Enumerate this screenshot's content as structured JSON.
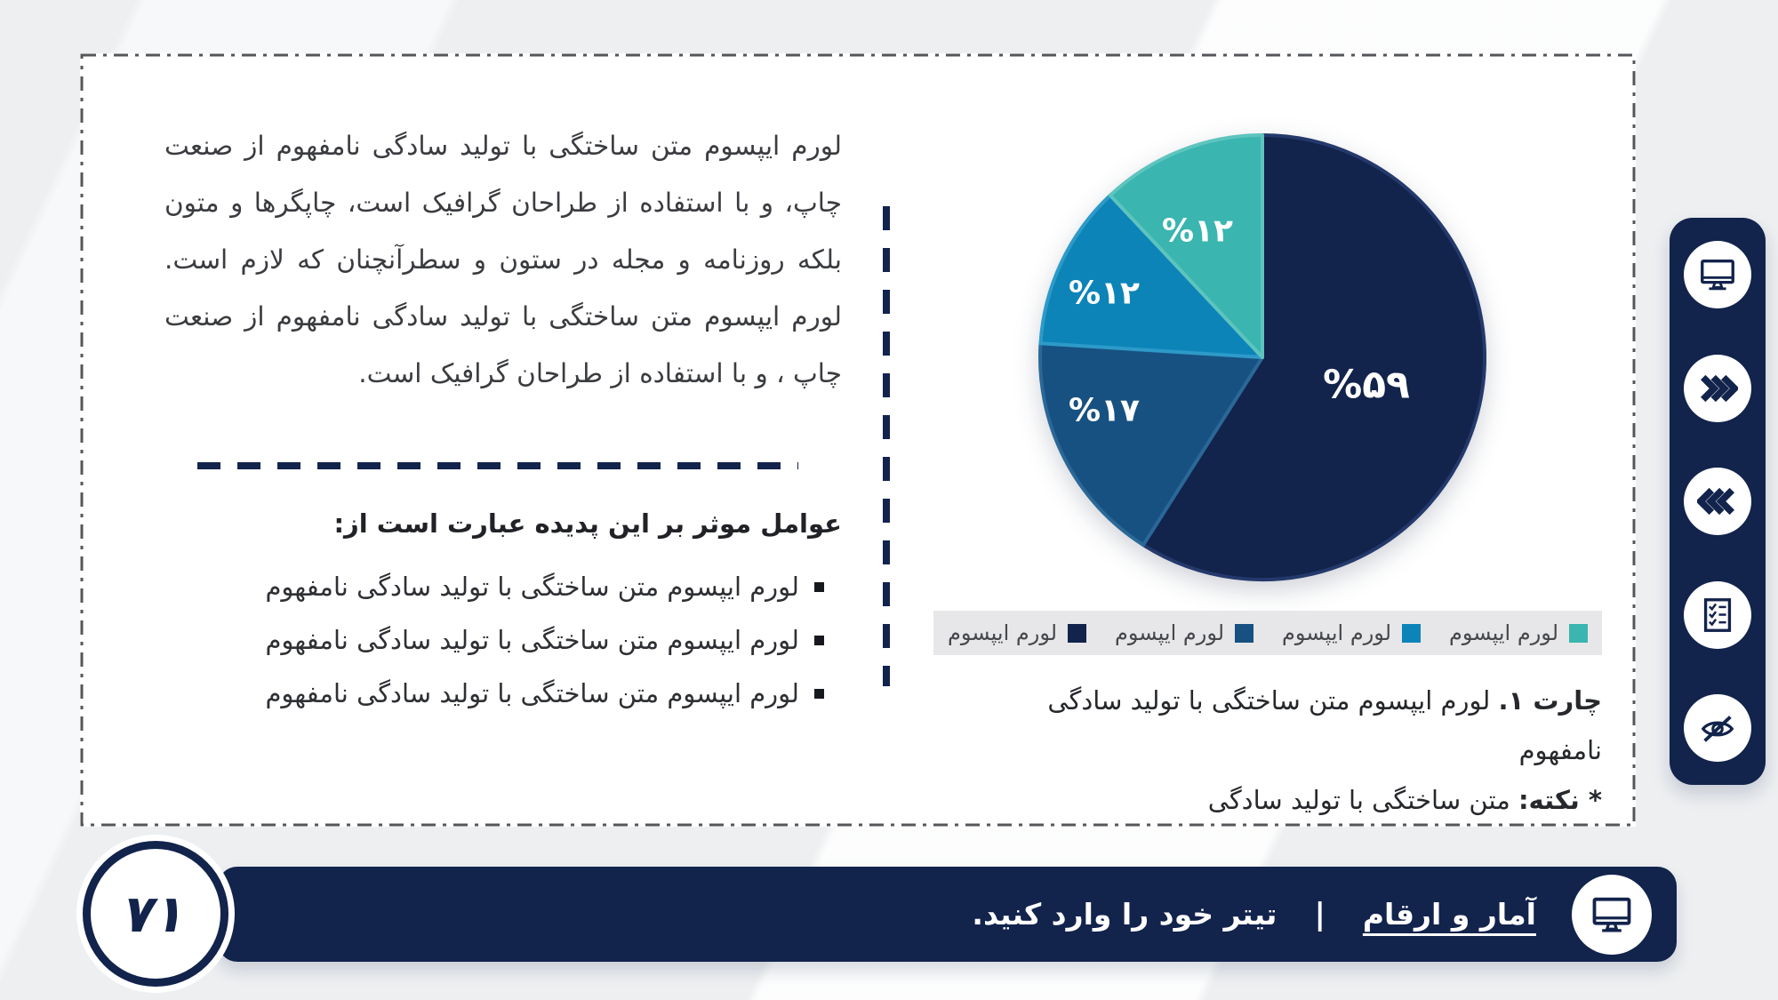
{
  "page": {
    "background_color": "#edeff1",
    "accent_navy": "#12234c",
    "frame_border_color": "#55565a"
  },
  "content": {
    "paragraph": "لورم ایپسوم متن ساختگی با تولید سادگی نامفهوم از صنعت چاپ، و با استفاده از طراحان گرافیک است، چاپگرها و متون بلکه روزنامه و مجله در ستون و سطرآنچنان که لازم است. لورم ایپسوم متن ساختگی با تولید سادگی نامفهوم از صنعت چاپ ، و با استفاده از طراحان گرافیک است.",
    "list_heading": "عوامل موثر بر این پدیده عبارت است از:",
    "bullets": [
      "لورم ایپسوم متن ساختگی با تولید سادگی نامفهوم",
      "لورم ایپسوم متن ساختگی با تولید سادگی نامفهوم",
      "لورم ایپسوم متن ساختگی با تولید سادگی نامفهوم"
    ]
  },
  "chart_data": {
    "type": "pie",
    "unit": "percent",
    "start_angle_deg": 0,
    "direction": "clockwise",
    "legend_position": "bottom",
    "slices": [
      {
        "label": "لورم ایپسوم",
        "value": 59,
        "display_label": "%۵۹",
        "color": "#12234c",
        "stroke": "#24396b"
      },
      {
        "label": "لورم ایپسوم",
        "value": 17,
        "display_label": "%۱۷",
        "color": "#175181",
        "stroke": "#2a6897"
      },
      {
        "label": "لورم ایپسوم",
        "value": 12,
        "display_label": "%۱۲",
        "color": "#0d84b8",
        "stroke": "#2d9ac9"
      },
      {
        "label": "لورم ایپسوم",
        "value": 12,
        "display_label": "%۱۲",
        "color": "#3ab5b0",
        "stroke": "#5dc4be"
      }
    ]
  },
  "caption": {
    "line1_bold": "چارت ۱.",
    "line1_rest": "لورم ایپسوم متن ساختگی با تولید سادگی نامفهوم",
    "line2_bold": "* نکته:",
    "line2_rest": "متن ساختگی با تولید سادگی"
  },
  "sidebar": {
    "icons": [
      "monitor-icon",
      "chevrons-right-icon",
      "chevrons-left-icon",
      "checklist-icon",
      "eye-off-icon"
    ]
  },
  "footer": {
    "section_link": "آمار و ارقام",
    "separator": "|",
    "title_placeholder": "تیتر خود را وارد کنید.",
    "page_number": "۷۱"
  }
}
